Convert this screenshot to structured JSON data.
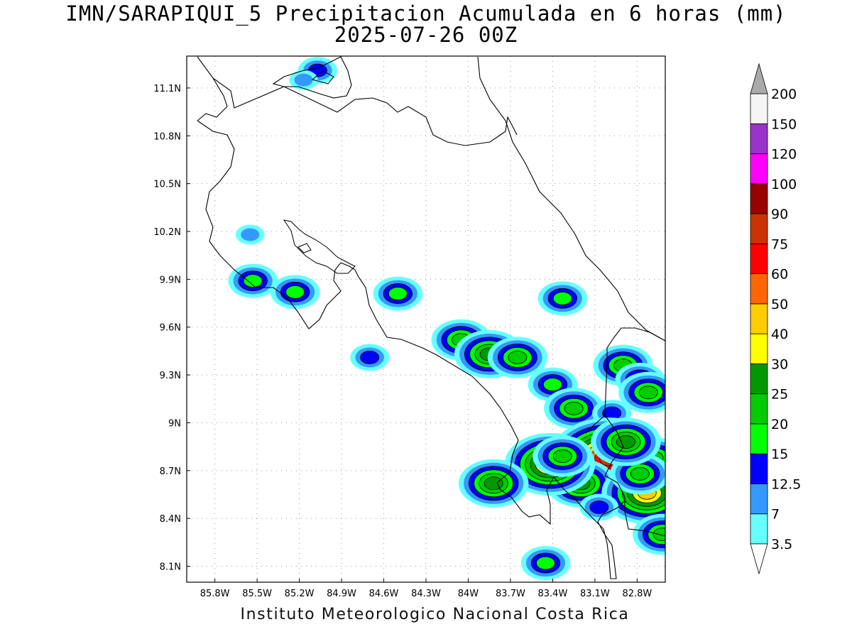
{
  "title": {
    "line1": "IMN/SARAPIQUI_5 Precipitacion Acumulada en 6 horas (mm)",
    "line2": "2025-07-26 00Z"
  },
  "credit": "Instituto Meteorologico Nacional Costa Rica",
  "map": {
    "projection": "lat-lon",
    "lon_range": [
      -86.0,
      -82.6
    ],
    "lat_range": [
      8.0,
      11.3
    ],
    "gridlines": "dotted",
    "region": "Costa Rica"
  },
  "axes": {
    "x_ticks": [
      -85.8,
      -85.5,
      -85.2,
      -84.9,
      -84.6,
      -84.3,
      -84.0,
      -83.7,
      -83.4,
      -83.1,
      -82.8
    ],
    "x_tick_labels": [
      "85.8W",
      "85.5W",
      "85.2W",
      "84.9W",
      "84.6W",
      "84.3W",
      "84W",
      "83.7W",
      "83.4W",
      "83.1W",
      "82.8W"
    ],
    "y_ticks": [
      11.1,
      10.8,
      10.5,
      10.2,
      9.9,
      9.6,
      9.3,
      9.0,
      8.7,
      8.4,
      8.1
    ],
    "y_tick_labels": [
      "11.1N",
      "10.8N",
      "10.5N",
      "10.2N",
      "9.9N",
      "9.6N",
      "9.3N",
      "9N",
      "8.7N",
      "8.4N",
      "8.1N"
    ]
  },
  "colorbar": {
    "labels": [
      "3.5",
      "7",
      "12.5",
      "15",
      "20",
      "25",
      "30",
      "40",
      "50",
      "60",
      "75",
      "90",
      "100",
      "120",
      "150",
      "200"
    ],
    "colors": [
      "#66ffff",
      "#3399ff",
      "#0000ff",
      "#00ff00",
      "#00cc00",
      "#009900",
      "#ffff00",
      "#ffcc00",
      "#ff6600",
      "#ff0000",
      "#cc3300",
      "#990000",
      "#ff00ff",
      "#9933cc",
      "#f5f5f5"
    ],
    "low_cap_color": "#ffffff",
    "high_cap_color": "#aaaaaa"
  },
  "precip_cells": [
    {
      "lon": -85.07,
      "lat": 11.21,
      "level": 2
    },
    {
      "lon": -85.17,
      "lat": 11.15,
      "level": 1
    },
    {
      "lon": -85.55,
      "lat": 10.18,
      "level": 1
    },
    {
      "lon": -85.53,
      "lat": 9.89,
      "level": 3
    },
    {
      "lon": -85.23,
      "lat": 9.82,
      "level": 3
    },
    {
      "lon": -84.7,
      "lat": 9.41,
      "level": 2
    },
    {
      "lon": -84.5,
      "lat": 9.81,
      "level": 3
    },
    {
      "lon": -84.05,
      "lat": 9.52,
      "level": 4
    },
    {
      "lon": -83.85,
      "lat": 9.43,
      "level": 5
    },
    {
      "lon": -83.65,
      "lat": 9.41,
      "level": 4
    },
    {
      "lon": -83.33,
      "lat": 9.78,
      "level": 3
    },
    {
      "lon": -83.4,
      "lat": 9.24,
      "level": 3
    },
    {
      "lon": -83.25,
      "lat": 9.09,
      "level": 4
    },
    {
      "lon": -82.98,
      "lat": 9.06,
      "level": 2
    },
    {
      "lon": -82.9,
      "lat": 9.36,
      "level": 4
    },
    {
      "lon": -82.78,
      "lat": 9.27,
      "level": 3
    },
    {
      "lon": -82.72,
      "lat": 9.19,
      "level": 4
    },
    {
      "lon": -83.0,
      "lat": 8.77,
      "level": 10
    },
    {
      "lon": -83.2,
      "lat": 8.62,
      "level": 5
    },
    {
      "lon": -83.42,
      "lat": 8.74,
      "level": 7
    },
    {
      "lon": -83.33,
      "lat": 8.79,
      "level": 4
    },
    {
      "lon": -83.82,
      "lat": 8.62,
      "level": 5
    },
    {
      "lon": -82.73,
      "lat": 8.56,
      "level": 7
    },
    {
      "lon": -82.68,
      "lat": 8.78,
      "level": 4
    },
    {
      "lon": -82.78,
      "lat": 8.68,
      "level": 4
    },
    {
      "lon": -82.62,
      "lat": 8.3,
      "level": 4
    },
    {
      "lon": -83.07,
      "lat": 8.47,
      "level": 2
    },
    {
      "lon": -83.45,
      "lat": 8.12,
      "level": 3
    },
    {
      "lon": -82.88,
      "lat": 8.88,
      "level": 5
    }
  ]
}
